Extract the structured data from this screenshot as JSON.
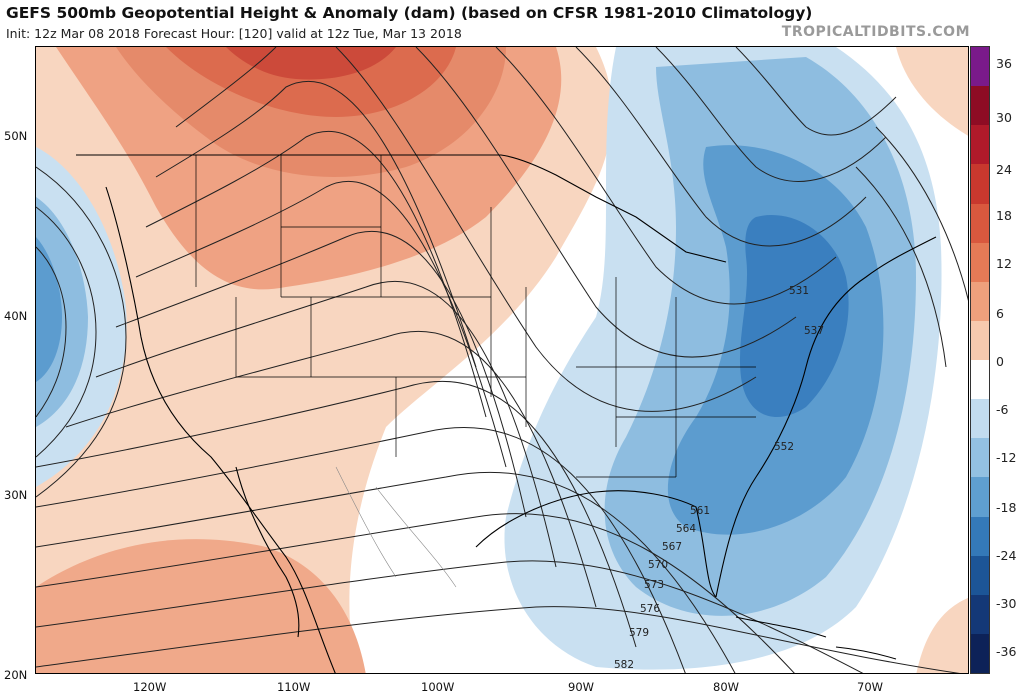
{
  "header": {
    "title": "GEFS 500mb Geopotential Height & Anomaly (dam) (based on CFSR 1981-2010 Climatology)",
    "subtitle": "Init: 12z Mar 08 2018   Forecast Hour: [120]   valid at 12z Tue, Mar 13 2018",
    "brand": "TROPICALTIDBITS.COM"
  },
  "axes": {
    "lat_labels": [
      "50N",
      "40N",
      "30N",
      "20N"
    ],
    "lon_labels": [
      "120W",
      "110W",
      "100W",
      "90W",
      "80W",
      "70W"
    ]
  },
  "contour_labels": [
    "531",
    "537",
    "552",
    "561",
    "564",
    "567",
    "570",
    "573",
    "576",
    "579",
    "582"
  ],
  "colorbar": {
    "labels": [
      "36",
      "30",
      "24",
      "18",
      "12",
      "6",
      "0",
      "-6",
      "-12",
      "-18",
      "-24",
      "-30",
      "-36"
    ],
    "colors": [
      "#7a1a8a",
      "#8e0c24",
      "#b01a2a",
      "#c8382e",
      "#d9583e",
      "#e57a56",
      "#eea07c",
      "#f6c9ae",
      "#ffffff",
      "#c2dcef",
      "#93c1e2",
      "#5f9fd0",
      "#3479b8",
      "#1c5597",
      "#143877",
      "#0d2258"
    ]
  },
  "colors": {
    "warm_light": "#f8d6c0",
    "warm_mid": "#efa283",
    "warm_strong": "#dc6b4e",
    "warm_deep": "#cc4a3a",
    "cool_light": "#c9e0f1",
    "cool_mid": "#8ebde0",
    "cool_strong": "#5c9ccf",
    "cool_deep": "#3a7fbf"
  }
}
